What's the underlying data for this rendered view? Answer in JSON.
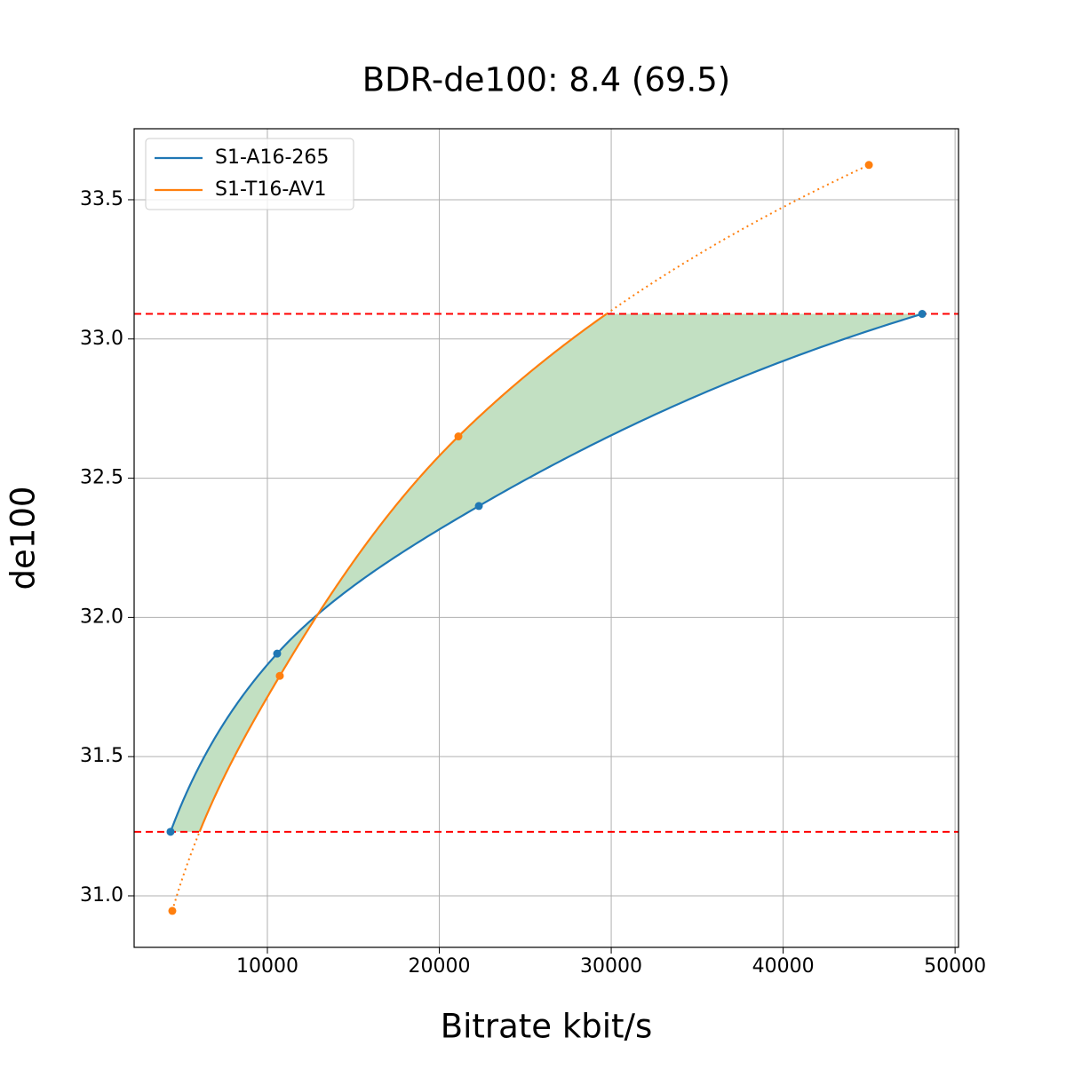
{
  "chart_data": {
    "type": "line",
    "title": "BDR-de100: 8.4 (69.5)",
    "x_label": "Bitrate kbit/s",
    "y_label": "de100",
    "series": [
      {
        "name": "S1-A16-265",
        "color": "#1f77b4",
        "x": [
          4367,
          10568,
          22300,
          48088
        ],
        "values": [
          31.23,
          31.87,
          32.4,
          33.09
        ]
      },
      {
        "name": "S1-T16-AV1",
        "color": "#ff7f0e",
        "x": [
          4470,
          10723,
          21111,
          44987
        ],
        "values": [
          30.946,
          31.79,
          32.65,
          33.625
        ]
      }
    ],
    "xlim": [
      2250,
      50200
    ],
    "ylim": [
      30.815,
      33.755
    ],
    "xticks": [
      10000,
      20000,
      30000,
      40000,
      50000
    ],
    "yticks": [
      {
        "value": 31.0,
        "label": "31.0"
      },
      31.5,
      {
        "value": 32.0,
        "label": "32.0"
      },
      32.5,
      {
        "value": 33.0,
        "label": "33.0"
      },
      33.5
    ],
    "grid": true,
    "legend": "upper left",
    "fill_color": "#c2e0c2",
    "reference_line_color": "#ff0000"
  }
}
